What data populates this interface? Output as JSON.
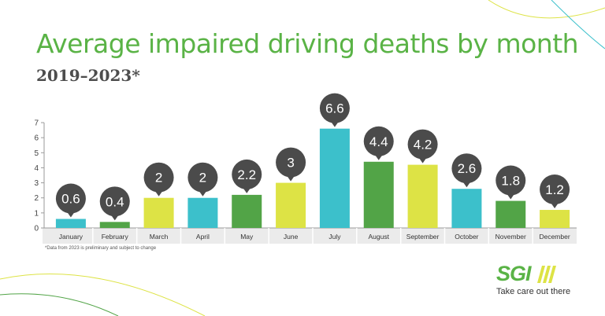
{
  "title": "Average impaired driving deaths by month",
  "subtitle": "2019–2023*",
  "footnote": "*Data from 2023 is preliminary and subject to change",
  "logo": {
    "name": "SGI",
    "tagline": "Take care out there"
  },
  "colors": {
    "cyan": "#3cc0cb",
    "green": "#52a447",
    "yellow": "#dde345",
    "bubble": "#4b4b4b",
    "title": "#5ab346"
  },
  "chart_data": {
    "type": "bar",
    "title": "Average impaired driving deaths by month",
    "subtitle": "2019–2023*",
    "xlabel": "",
    "ylabel": "",
    "ylim": [
      0,
      7
    ],
    "yticks": [
      0,
      1,
      2,
      3,
      4,
      5,
      6,
      7
    ],
    "categories": [
      "January",
      "February",
      "March",
      "April",
      "May",
      "June",
      "July",
      "August",
      "September",
      "October",
      "November",
      "December"
    ],
    "values": [
      0.6,
      0.4,
      2,
      2,
      2.2,
      3,
      6.6,
      4.4,
      4.2,
      2.6,
      1.8,
      1.2
    ],
    "bar_colors": [
      "#3cc0cb",
      "#52a447",
      "#dde345",
      "#3cc0cb",
      "#52a447",
      "#dde345",
      "#3cc0cb",
      "#52a447",
      "#dde345",
      "#3cc0cb",
      "#52a447",
      "#dde345"
    ],
    "data_labels": [
      "0.6",
      "0.4",
      "2",
      "2",
      "2.2",
      "3",
      "6.6",
      "4.4",
      "4.2",
      "2.6",
      "1.8",
      "1.2"
    ]
  }
}
